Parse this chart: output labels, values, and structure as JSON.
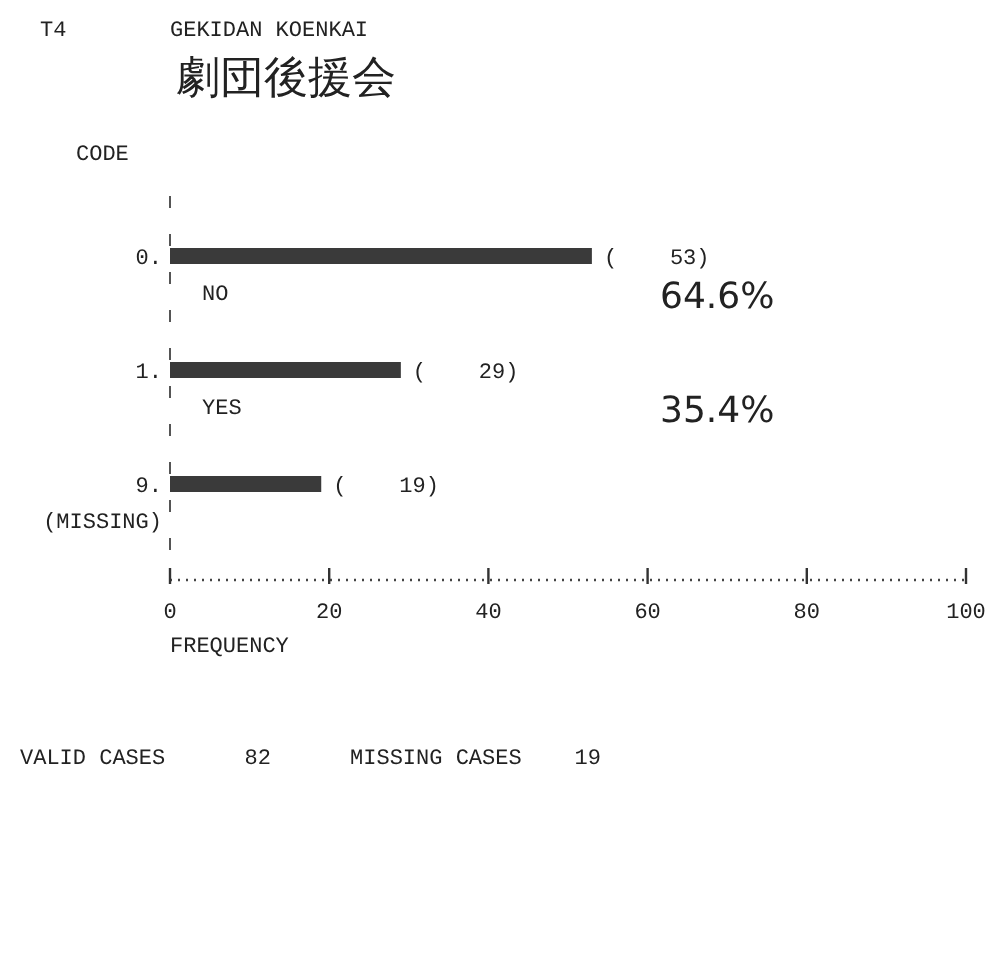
{
  "chart_data": {
    "type": "bar",
    "orientation": "horizontal",
    "title": "GEKIDAN KOENKAI",
    "subtitle": "劇団後援会",
    "ylabel": "CODE",
    "xlabel": "FREQUENCY",
    "categories": [
      "0.",
      "1.",
      "9."
    ],
    "values": [
      53,
      29,
      19
    ],
    "color": "#3a3a3a",
    "value_labels": [
      "(    53)",
      "(    29)",
      "(    19)"
    ],
    "xlim": [
      0,
      100
    ],
    "xticks": [
      0,
      20,
      40,
      60,
      80,
      100
    ],
    "annotations": [
      "T4",
      "NO",
      "64.6%",
      "YES",
      "35.4%",
      "(MISSING)",
      "VALID CASES      82      MISSING CASES    19"
    ]
  }
}
